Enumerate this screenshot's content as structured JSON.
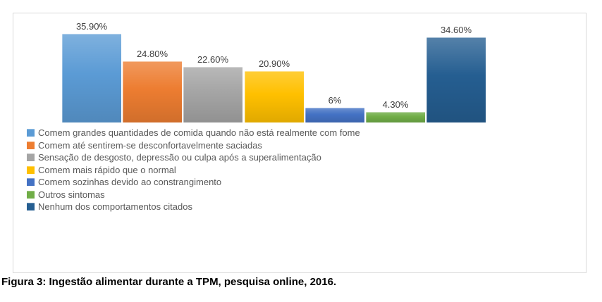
{
  "chart_data": {
    "type": "bar",
    "title": "",
    "xlabel": "",
    "ylabel": "",
    "ylim": [
      0,
      40
    ],
    "grid": false,
    "axes_visible": false,
    "value_labels": "above bars",
    "legend_position": "bottom-left",
    "label_color": "#404040",
    "legend_text_color": "#595959",
    "panel_border_color": "#d9d9d9",
    "series": [
      {
        "label": "Comem grandes quantidades de comida quando não está realmente com fome",
        "value": 35.9,
        "value_label": "35.90%",
        "color": "#5B9BD5"
      },
      {
        "label": "Comem até sentirem-se desconfortavelmente saciadas",
        "value": 24.8,
        "value_label": "24.80%",
        "color": "#ED7D31"
      },
      {
        "label": "Sensação de desgosto, depressão ou culpa após a superalimentação",
        "value": 22.6,
        "value_label": "22.60%",
        "color": "#A5A5A5"
      },
      {
        "label": "Comem mais rápido que o normal",
        "value": 20.9,
        "value_label": "20.90%",
        "color": "#FFC000"
      },
      {
        "label": "Comem sozinhas devido ao constrangimento",
        "value": 6,
        "value_label": "6%",
        "color": "#4472C4"
      },
      {
        "label": "Outros sintomas",
        "value": 4.3,
        "value_label": "4.30%",
        "color": "#70AD47"
      },
      {
        "label": "Nenhum dos comportamentos citados",
        "value": 34.6,
        "value_label": "34.60%",
        "color": "#255E91"
      }
    ]
  },
  "caption": "Figura 3: Ingestão alimentar durante a TPM, pesquisa online, 2016."
}
